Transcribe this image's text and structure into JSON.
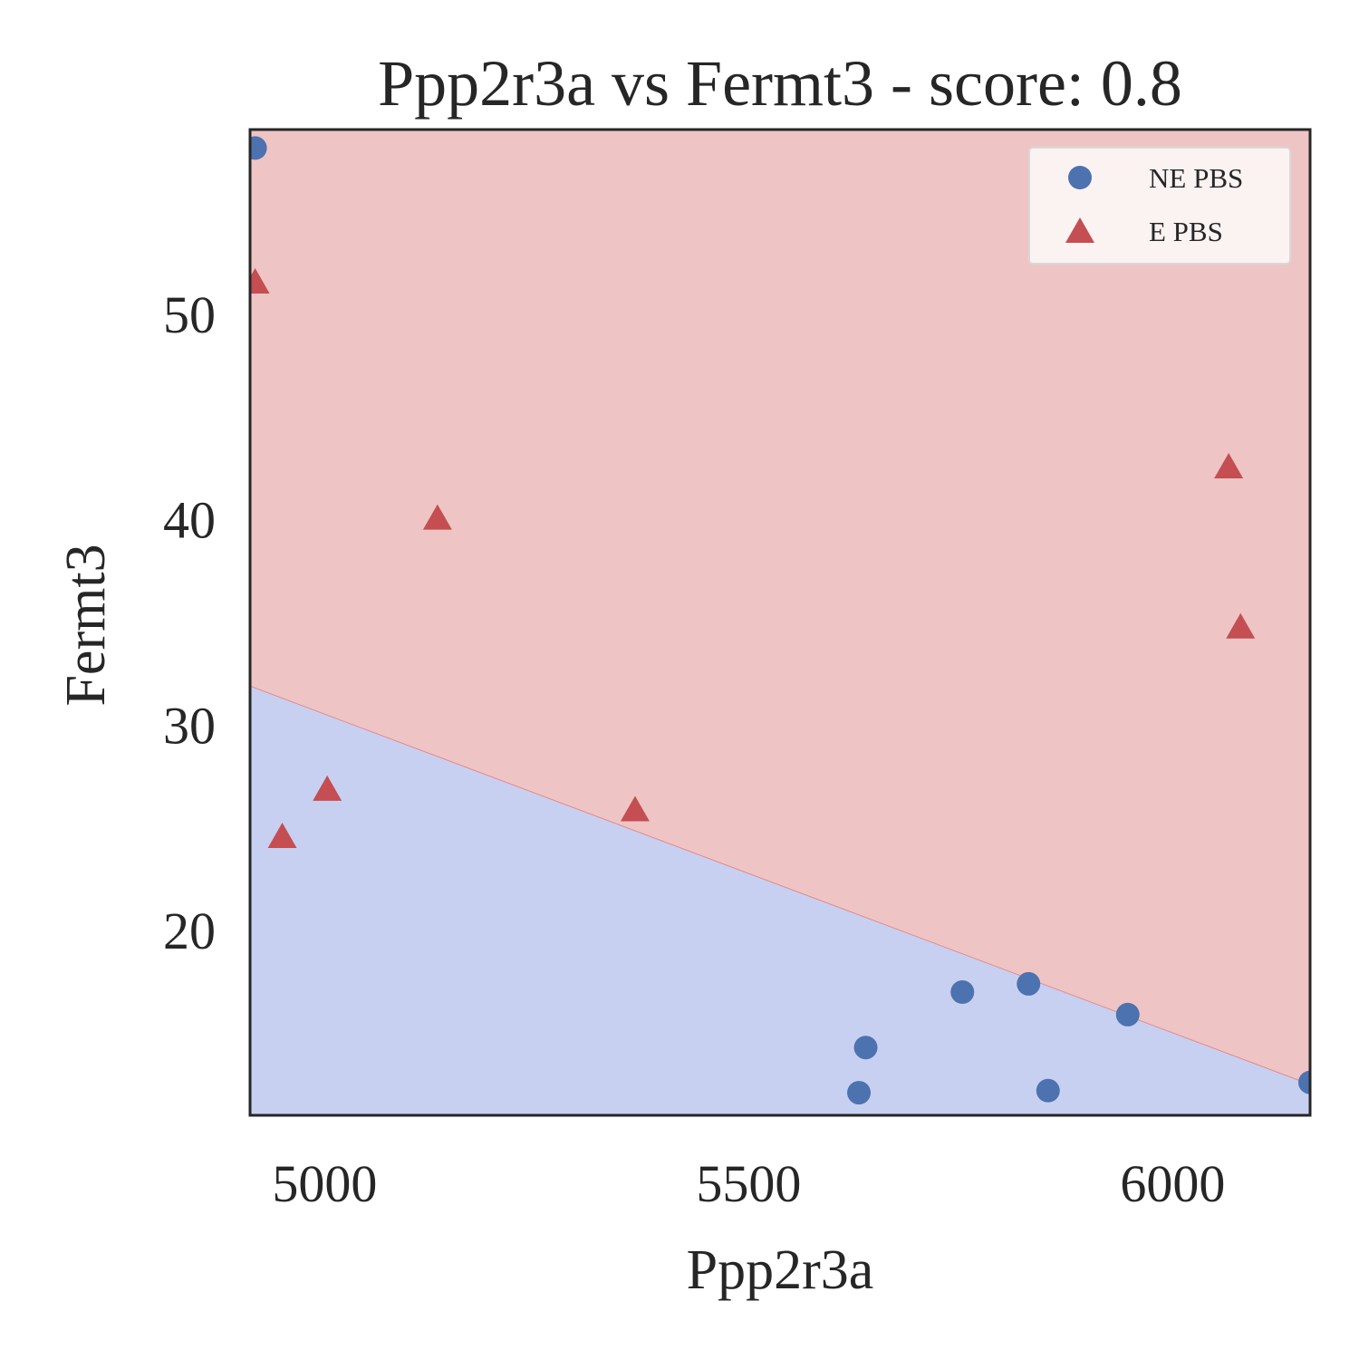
{
  "chart_data": {
    "type": "scatter",
    "title": "Ppp2r3a vs Fermt3 - score: 0.8",
    "xlabel": "Ppp2r3a",
    "ylabel": "Fermt3",
    "xlim": [
      4912,
      6162
    ],
    "ylim": [
      11.0,
      59.0
    ],
    "xticks": [
      5000,
      5500,
      6000
    ],
    "yticks": [
      20,
      30,
      40,
      50
    ],
    "grid": false,
    "legend_position": "top-right",
    "decision_boundary": {
      "x": [
        4912,
        6162
      ],
      "y": [
        31.9,
        12.5
      ],
      "below_region_color": "#c8d0f2",
      "above_region_color": "#eec5c4",
      "boundary_color": "#e48a8a"
    },
    "series": [
      {
        "name": "NE PBS",
        "marker": "circle",
        "color": "#4c72b0",
        "points": [
          [
            4918,
            58.1
          ],
          [
            5630,
            12.1
          ],
          [
            5638,
            14.3
          ],
          [
            5752,
            17.0
          ],
          [
            5830,
            17.4
          ],
          [
            5853,
            12.2
          ],
          [
            5947,
            15.9
          ],
          [
            6162,
            12.6
          ]
        ]
      },
      {
        "name": "E PBS",
        "marker": "triangle",
        "color": "#c44e52",
        "points": [
          [
            4918,
            51.5
          ],
          [
            4950,
            24.5
          ],
          [
            5003,
            26.8
          ],
          [
            5133,
            40.0
          ],
          [
            5366,
            25.8
          ],
          [
            6066,
            42.5
          ],
          [
            6080,
            34.7
          ]
        ]
      }
    ]
  }
}
